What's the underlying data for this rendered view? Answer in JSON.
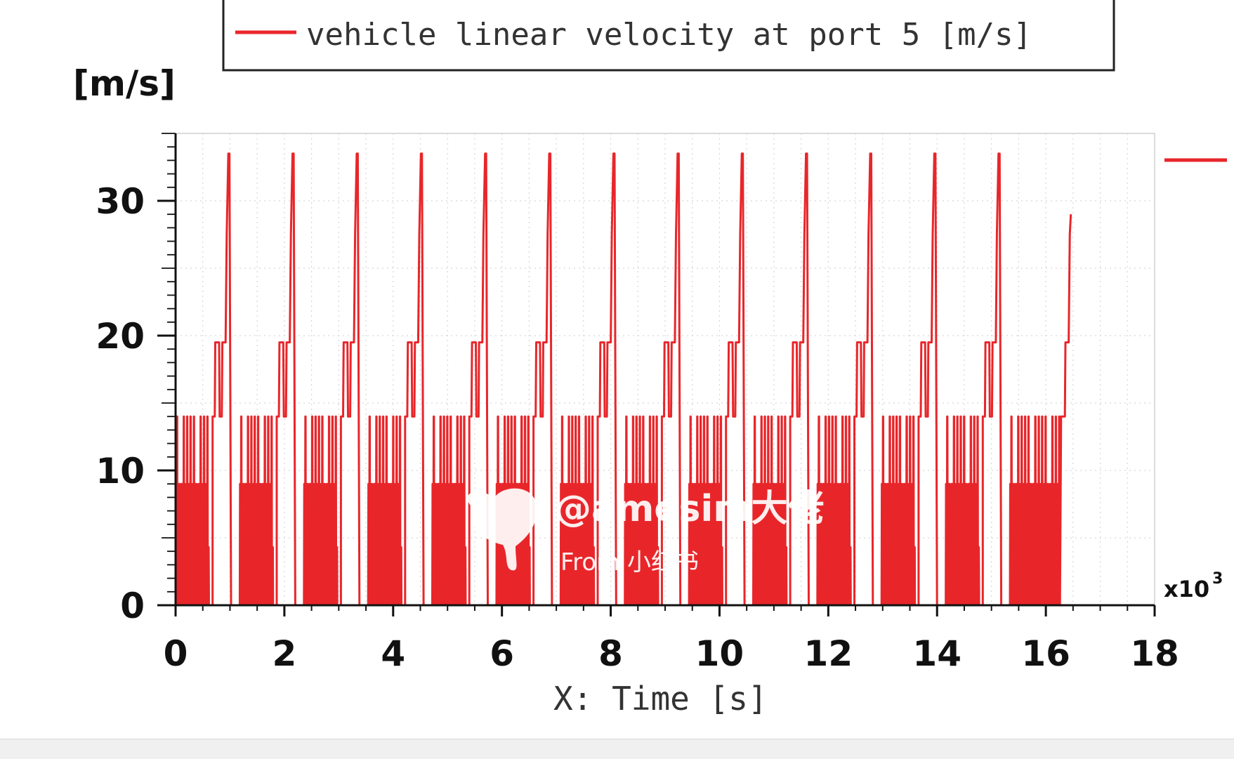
{
  "chart_data": {
    "type": "line",
    "legend": {
      "entries": [
        "vehicle linear velocity at port 5 [m/s]"
      ],
      "placement": "top"
    },
    "y_unit_label": "[m/s]",
    "xlabel": "X: Time [s]",
    "x_multiplier": "x10",
    "x_multiplier_exp": "3",
    "xlim": [
      0,
      18
    ],
    "ylim": [
      0,
      35
    ],
    "x_ticks": [
      "0",
      "2",
      "4",
      "6",
      "8",
      "10",
      "12",
      "14",
      "16",
      "18"
    ],
    "y_ticks": [
      "0",
      "10",
      "20",
      "30"
    ],
    "grid": true,
    "series": [
      {
        "name": "vehicle linear velocity at port 5 [m/s]",
        "color": "#e8262a",
        "cycle_period": 1.18,
        "cycle_starts": [
          0,
          1.18,
          2.36,
          3.54,
          4.72,
          5.9,
          7.08,
          8.26,
          9.44,
          10.62,
          11.8,
          12.98,
          14.16,
          15.34
        ],
        "end_time": 16.45,
        "end_value": 29,
        "levels": {
          "base_low": 4.3,
          "mid": 9,
          "step": 14,
          "high": 19.5,
          "upper": 27.5,
          "peak": 33.5
        }
      }
    ]
  },
  "watermark": {
    "handle": "@amesim大佬",
    "source": "From 小红书"
  }
}
